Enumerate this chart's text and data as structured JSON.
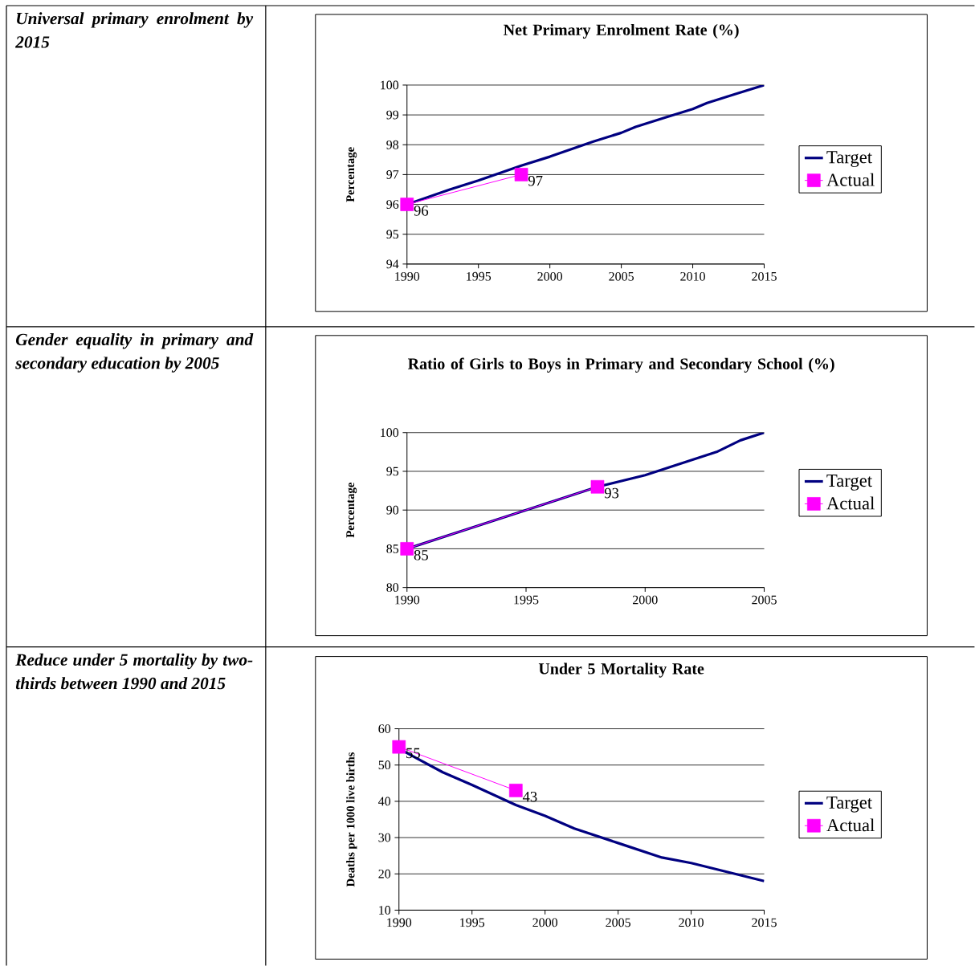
{
  "chart_data": [
    {
      "type": "line",
      "title": "Net Primary Enrolment Rate (%)",
      "ylabel": "Percentage",
      "annotations": [
        "Universal primary enrolment by 2015"
      ],
      "xlim": [
        1990,
        2015
      ],
      "xticks": [
        1990,
        1995,
        2000,
        2005,
        2010,
        2015
      ],
      "ylim": [
        94,
        100
      ],
      "yticks": [
        94,
        95,
        96,
        97,
        98,
        99,
        100
      ],
      "grid": "y",
      "legend": "right",
      "series": [
        {
          "name": "Target",
          "color": "#000080",
          "x": [
            1990,
            1993,
            1995,
            1998,
            2000,
            2003,
            2005,
            2006,
            2008,
            2010,
            2011,
            2013,
            2015
          ],
          "values": [
            96,
            96.5,
            96.8,
            97.3,
            97.6,
            98.1,
            98.4,
            98.6,
            98.9,
            99.2,
            99.4,
            99.7,
            100
          ]
        },
        {
          "name": "Actual",
          "color": "#ff00ff",
          "marker": "square",
          "x": [
            1990,
            1998
          ],
          "values": [
            96,
            97
          ],
          "value_labels": [
            "96",
            "97"
          ]
        }
      ]
    },
    {
      "type": "line",
      "title": "Ratio of Girls to Boys in Primary and Secondary School (%)",
      "ylabel": "Percentage",
      "annotations": [
        "Gender equality in primary and secondary education by 2005"
      ],
      "xlim": [
        1990,
        2005
      ],
      "xticks": [
        1990,
        1995,
        2000,
        2005
      ],
      "ylim": [
        80,
        100
      ],
      "yticks": [
        80,
        85,
        90,
        95,
        100
      ],
      "grid": "y",
      "legend": "right",
      "series": [
        {
          "name": "Target",
          "color": "#000080",
          "x": [
            1990,
            1993,
            1995,
            1998,
            2000,
            2003,
            2004,
            2005
          ],
          "values": [
            85,
            88,
            90,
            93,
            94.5,
            97.5,
            99,
            100
          ]
        },
        {
          "name": "Actual",
          "color": "#ff00ff",
          "marker": "square",
          "x": [
            1990,
            1998
          ],
          "values": [
            85,
            93
          ],
          "value_labels": [
            "85",
            "93"
          ]
        }
      ]
    },
    {
      "type": "line",
      "title": "Under 5 Mortality Rate",
      "ylabel": "Deaths per 1000 live births",
      "annotations": [
        "Reduce under 5 mortality by two-thirds between 1990 and 2015"
      ],
      "xlim": [
        1990,
        2015
      ],
      "xticks": [
        1990,
        1995,
        2000,
        2005,
        2010,
        2015
      ],
      "ylim": [
        10,
        60
      ],
      "yticks": [
        10,
        20,
        30,
        40,
        50,
        60
      ],
      "grid": "y",
      "legend": "right",
      "series": [
        {
          "name": "Target",
          "color": "#000080",
          "x": [
            1990,
            1993,
            1995,
            1998,
            2000,
            2002,
            2005,
            2008,
            2010,
            2013,
            2015
          ],
          "values": [
            54.5,
            48,
            44.5,
            39,
            36,
            32.5,
            28.5,
            24.5,
            23,
            20,
            18
          ]
        },
        {
          "name": "Actual",
          "color": "#ff00ff",
          "marker": "square",
          "x": [
            1990,
            1998
          ],
          "values": [
            55,
            43
          ],
          "value_labels": [
            "55",
            "43"
          ]
        }
      ]
    }
  ]
}
